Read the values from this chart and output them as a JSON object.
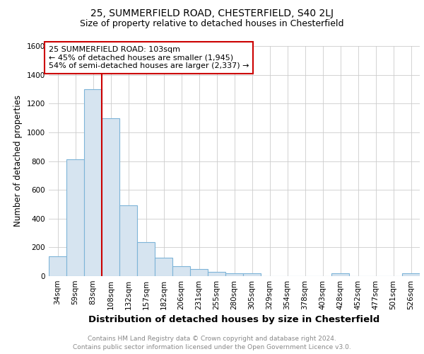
{
  "title1": "25, SUMMERFIELD ROAD, CHESTERFIELD, S40 2LJ",
  "title2": "Size of property relative to detached houses in Chesterfield",
  "xlabel": "Distribution of detached houses by size in Chesterfield",
  "ylabel": "Number of detached properties",
  "categories": [
    "34sqm",
    "59sqm",
    "83sqm",
    "108sqm",
    "132sqm",
    "157sqm",
    "182sqm",
    "206sqm",
    "231sqm",
    "255sqm",
    "280sqm",
    "305sqm",
    "329sqm",
    "354sqm",
    "378sqm",
    "403sqm",
    "428sqm",
    "452sqm",
    "477sqm",
    "501sqm",
    "526sqm"
  ],
  "values": [
    140,
    810,
    1300,
    1100,
    490,
    235,
    130,
    70,
    50,
    30,
    20,
    20,
    0,
    0,
    0,
    0,
    20,
    0,
    0,
    0,
    20
  ],
  "bar_color": "#d6e4f0",
  "bar_edge_color": "#7db4d8",
  "vline_x_index": 3,
  "vline_color": "#cc0000",
  "annotation_line1": "25 SUMMERFIELD ROAD: 103sqm",
  "annotation_line2": "← 45% of detached houses are smaller (1,945)",
  "annotation_line3": "54% of semi-detached houses are larger (2,337) →",
  "annotation_box_color": "#ffffff",
  "annotation_box_edge_color": "#cc0000",
  "ylim": [
    0,
    1600
  ],
  "yticks": [
    0,
    200,
    400,
    600,
    800,
    1000,
    1200,
    1400,
    1600
  ],
  "grid_color": "#cccccc",
  "bg_color": "#ffffff",
  "footer": "Contains HM Land Registry data © Crown copyright and database right 2024.\nContains public sector information licensed under the Open Government Licence v3.0.",
  "title1_fontsize": 10,
  "title2_fontsize": 9,
  "xlabel_fontsize": 9.5,
  "ylabel_fontsize": 8.5,
  "tick_fontsize": 7.5,
  "annotation_fontsize": 8,
  "footer_fontsize": 6.5
}
